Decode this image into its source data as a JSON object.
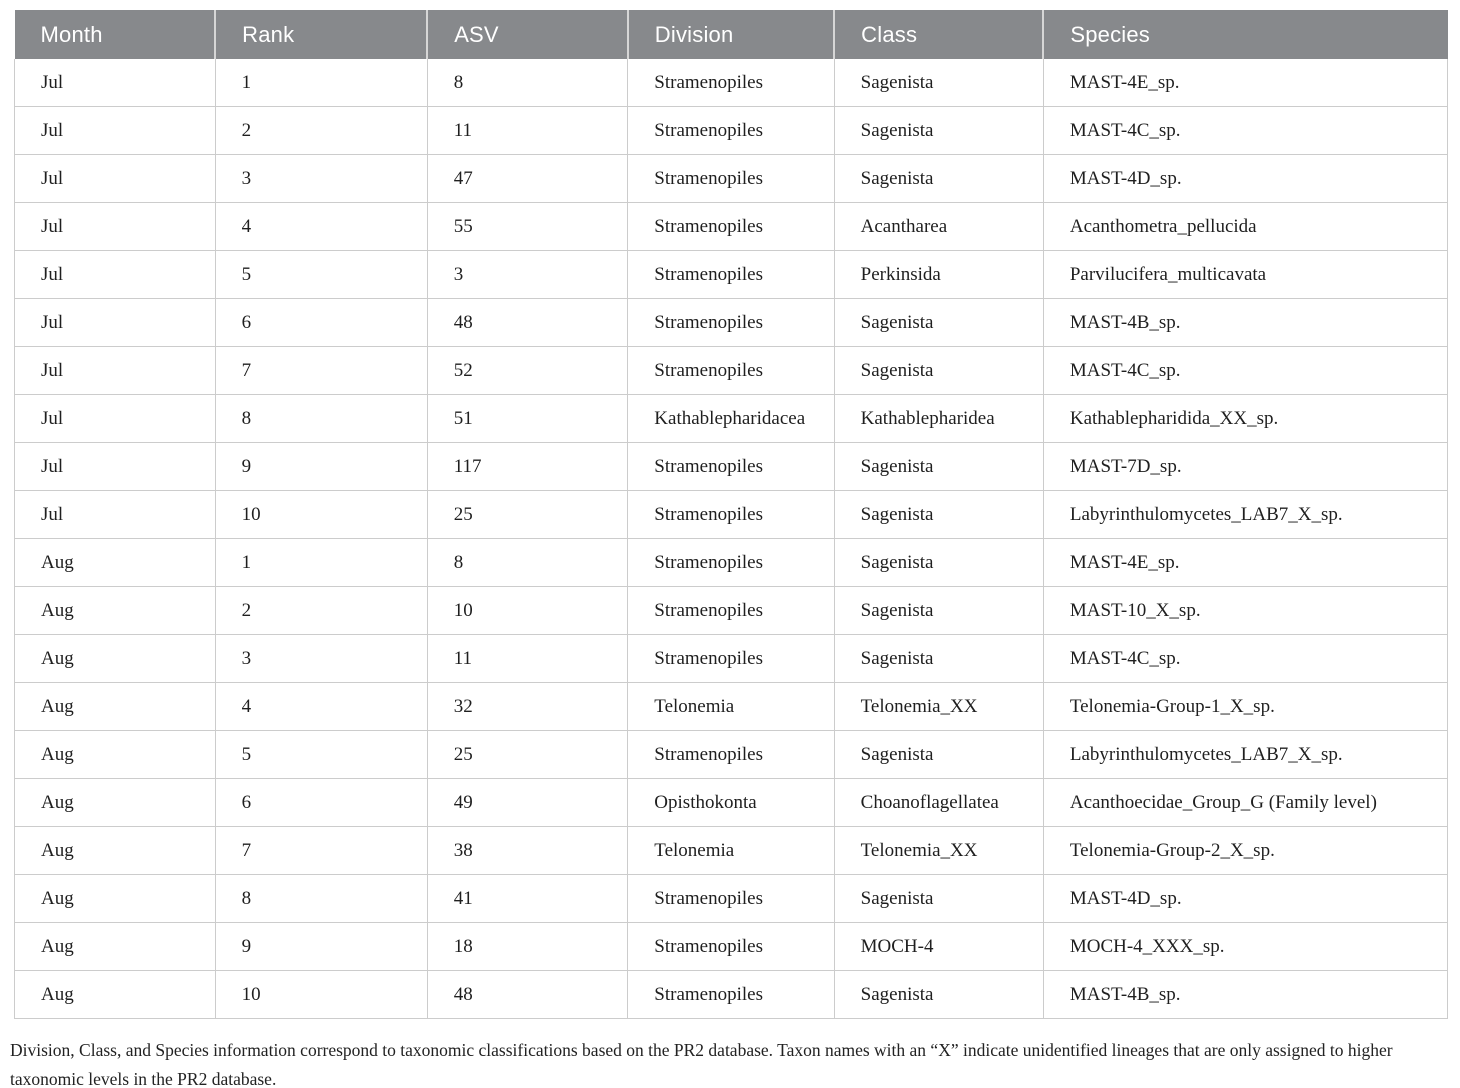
{
  "colors": {
    "header_bg": "#87898c",
    "header_text": "#ffffff",
    "border": "#cccccc",
    "body_text": "#1f1f1f"
  },
  "table": {
    "columns": [
      {
        "key": "month",
        "label": "Month"
      },
      {
        "key": "rank",
        "label": "Rank"
      },
      {
        "key": "asv",
        "label": "ASV"
      },
      {
        "key": "division",
        "label": "Division"
      },
      {
        "key": "class",
        "label": "Class"
      },
      {
        "key": "species",
        "label": "Species"
      }
    ],
    "rows": [
      {
        "month": "Jul",
        "rank": "1",
        "asv": "8",
        "division": "Stramenopiles",
        "class": "Sagenista",
        "species": "MAST-4E_sp."
      },
      {
        "month": "Jul",
        "rank": "2",
        "asv": "11",
        "division": "Stramenopiles",
        "class": "Sagenista",
        "species": "MAST-4C_sp."
      },
      {
        "month": "Jul",
        "rank": "3",
        "asv": "47",
        "division": "Stramenopiles",
        "class": "Sagenista",
        "species": "MAST-4D_sp."
      },
      {
        "month": "Jul",
        "rank": "4",
        "asv": "55",
        "division": "Stramenopiles",
        "class": "Acantharea",
        "species": "Acanthometra_pellucida"
      },
      {
        "month": "Jul",
        "rank": "5",
        "asv": "3",
        "division": "Stramenopiles",
        "class": "Perkinsida",
        "species": "Parvilucifera_multicavata"
      },
      {
        "month": "Jul",
        "rank": "6",
        "asv": "48",
        "division": "Stramenopiles",
        "class": "Sagenista",
        "species": "MAST-4B_sp."
      },
      {
        "month": "Jul",
        "rank": "7",
        "asv": "52",
        "division": "Stramenopiles",
        "class": "Sagenista",
        "species": "MAST-4C_sp."
      },
      {
        "month": "Jul",
        "rank": "8",
        "asv": "51",
        "division": "Kathablepharidacea",
        "class": "Kathablepharidea",
        "species": "Kathablepharidida_XX_sp."
      },
      {
        "month": "Jul",
        "rank": "9",
        "asv": "117",
        "division": "Stramenopiles",
        "class": "Sagenista",
        "species": "MAST-7D_sp."
      },
      {
        "month": "Jul",
        "rank": "10",
        "asv": "25",
        "division": "Stramenopiles",
        "class": "Sagenista",
        "species": "Labyrinthulomycetes_LAB7_X_sp."
      },
      {
        "month": "Aug",
        "rank": "1",
        "asv": "8",
        "division": "Stramenopiles",
        "class": "Sagenista",
        "species": "MAST-4E_sp."
      },
      {
        "month": "Aug",
        "rank": "2",
        "asv": "10",
        "division": "Stramenopiles",
        "class": "Sagenista",
        "species": "MAST-10_X_sp."
      },
      {
        "month": "Aug",
        "rank": "3",
        "asv": "11",
        "division": "Stramenopiles",
        "class": "Sagenista",
        "species": "MAST-4C_sp."
      },
      {
        "month": "Aug",
        "rank": "4",
        "asv": "32",
        "division": "Telonemia",
        "class": "Telonemia_XX",
        "species": "Telonemia-Group-1_X_sp."
      },
      {
        "month": "Aug",
        "rank": "5",
        "asv": "25",
        "division": "Stramenopiles",
        "class": "Sagenista",
        "species": "Labyrinthulomycetes_LAB7_X_sp."
      },
      {
        "month": "Aug",
        "rank": "6",
        "asv": "49",
        "division": "Opisthokonta",
        "class": "Choanoflagellatea",
        "species": "Acanthoecidae_Group_G (Family level)"
      },
      {
        "month": "Aug",
        "rank": "7",
        "asv": "38",
        "division": "Telonemia",
        "class": "Telonemia_XX",
        "species": "Telonemia-Group-2_X_sp."
      },
      {
        "month": "Aug",
        "rank": "8",
        "asv": "41",
        "division": "Stramenopiles",
        "class": "Sagenista",
        "species": "MAST-4D_sp."
      },
      {
        "month": "Aug",
        "rank": "9",
        "asv": "18",
        "division": "Stramenopiles",
        "class": "MOCH-4",
        "species": "MOCH-4_XXX_sp."
      },
      {
        "month": "Aug",
        "rank": "10",
        "asv": "48",
        "division": "Stramenopiles",
        "class": "Sagenista",
        "species": "MAST-4B_sp."
      }
    ]
  },
  "footnote": "Division, Class, and Species information correspond to taxonomic classifications based on the PR2 database. Taxon names with an “X” indicate unidentified lineages that are only assigned to higher taxonomic levels in the PR2 database."
}
